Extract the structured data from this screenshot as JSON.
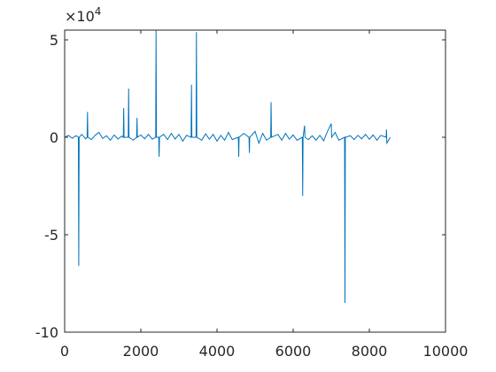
{
  "chart_data": {
    "type": "line",
    "x": [
      0,
      100,
      200,
      300,
      360,
      370,
      380,
      450,
      550,
      590,
      600,
      610,
      700,
      800,
      900,
      1000,
      1100,
      1200,
      1300,
      1400,
      1500,
      1540,
      1550,
      1560,
      1670,
      1680,
      1690,
      1800,
      1890,
      1900,
      1910,
      2000,
      2100,
      2200,
      2300,
      2390,
      2400,
      2410,
      2470,
      2480,
      2490,
      2600,
      2700,
      2800,
      2900,
      3000,
      3100,
      3200,
      3320,
      3330,
      3340,
      3450,
      3460,
      3470,
      3600,
      3700,
      3800,
      3900,
      4000,
      4100,
      4200,
      4300,
      4400,
      4560,
      4570,
      4580,
      4700,
      4840,
      4850,
      4860,
      5000,
      5100,
      5200,
      5300,
      5410,
      5420,
      5430,
      5600,
      5700,
      5800,
      5900,
      6000,
      6100,
      6240,
      6250,
      6260,
      6300,
      6310,
      6400,
      6500,
      6600,
      6700,
      6800,
      6900,
      7000,
      7010,
      7100,
      7200,
      7350,
      7360,
      7370,
      7500,
      7600,
      7700,
      7800,
      7900,
      8000,
      8100,
      8200,
      8300,
      8440,
      8450,
      8460,
      8550
    ],
    "series": [
      {
        "color": "#0072bd",
        "values": [
          0,
          1000,
          -500,
          800,
          0,
          -66000,
          0,
          1500,
          -800,
          0,
          13000,
          0,
          -1200,
          1000,
          2500,
          -600,
          800,
          -1500,
          1200,
          -900,
          600,
          0,
          15000,
          0,
          0,
          25000,
          0,
          -1500,
          0,
          10000,
          0,
          1200,
          -800,
          1500,
          -1000,
          0,
          55000,
          0,
          0,
          -10000,
          0,
          1500,
          -1200,
          2000,
          -900,
          1500,
          -2000,
          1000,
          0,
          27000,
          0,
          0,
          54000,
          0,
          -1500,
          1800,
          -1000,
          1500,
          -2000,
          1000,
          -1500,
          2500,
          -1200,
          0,
          -10000,
          0,
          2000,
          0,
          -8000,
          0,
          3000,
          -3000,
          2000,
          -1500,
          0,
          18000,
          0,
          1500,
          -1500,
          2000,
          -1000,
          1200,
          -1500,
          0,
          -30000,
          0,
          6000,
          0,
          -1200,
          800,
          -1500,
          1000,
          -1800,
          3000,
          7000,
          0,
          2500,
          -1500,
          0,
          -85000,
          0,
          800,
          -1200,
          1000,
          -800,
          1500,
          -1000,
          1200,
          -1500,
          1000,
          0,
          4000,
          -3000,
          0
        ]
      }
    ],
    "xlim": [
      0,
      10000
    ],
    "xticks": [
      0,
      2000,
      4000,
      6000,
      8000,
      10000
    ],
    "ylim": [
      -100000,
      55000
    ],
    "yticks": [
      {
        "value": -100000,
        "label": "-10"
      },
      {
        "value": -50000,
        "label": "-5"
      },
      0,
      {
        "value": 50000,
        "label": "5"
      }
    ],
    "y_exponent_base": "×10",
    "y_exponent": "4",
    "grid": false
  }
}
